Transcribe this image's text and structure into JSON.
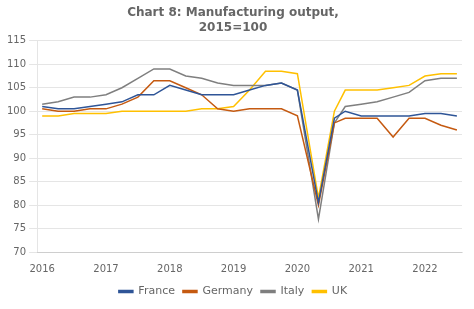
{
  "chart_data": {
    "type": "line",
    "title": "Chart 8: Manufacturing output,\n2015=100",
    "x": [
      2016.0,
      2016.25,
      2016.5,
      2016.75,
      2017.0,
      2017.25,
      2017.5,
      2017.75,
      2018.0,
      2018.25,
      2018.5,
      2018.75,
      2019.0,
      2019.25,
      2019.5,
      2019.75,
      2020.0,
      2020.33,
      2020.58,
      2020.75,
      2021.0,
      2021.25,
      2021.5,
      2021.75,
      2022.0,
      2022.25,
      2022.5
    ],
    "series": [
      {
        "name": "France",
        "color": "#2f5597",
        "values": [
          101.0,
          100.5,
          100.5,
          101.0,
          101.5,
          102.0,
          103.5,
          103.5,
          105.5,
          104.5,
          103.5,
          103.5,
          103.5,
          104.5,
          105.5,
          106.0,
          104.5,
          80.5,
          98.5,
          100.0,
          99.0,
          99.0,
          99.0,
          99.0,
          99.5,
          99.5,
          99.0
        ]
      },
      {
        "name": "Germany",
        "color": "#c55a11",
        "values": [
          100.5,
          100.0,
          100.0,
          100.5,
          100.5,
          101.5,
          103.0,
          106.5,
          106.5,
          105.0,
          103.5,
          100.5,
          100.0,
          100.5,
          100.5,
          100.5,
          99.0,
          80.0,
          97.5,
          98.5,
          98.5,
          98.5,
          94.5,
          98.5,
          98.5,
          97.0,
          96.0
        ]
      },
      {
        "name": "Italy",
        "color": "#7f7f7f",
        "values": [
          101.5,
          102.0,
          103.0,
          103.0,
          103.5,
          105.0,
          107.0,
          109.0,
          109.0,
          107.5,
          107.0,
          106.0,
          105.5,
          105.5,
          105.5,
          106.0,
          104.5,
          77.0,
          97.5,
          101.0,
          101.5,
          102.0,
          103.0,
          104.0,
          106.5,
          107.0,
          107.0
        ]
      },
      {
        "name": "UK",
        "color": "#ffc000",
        "values": [
          99.0,
          99.0,
          99.5,
          99.5,
          99.5,
          100.0,
          100.0,
          100.0,
          100.0,
          100.0,
          100.5,
          100.5,
          101.0,
          104.5,
          108.5,
          108.5,
          108.0,
          81.5,
          100.0,
          104.5,
          104.5,
          104.5,
          105.0,
          105.5,
          107.5,
          108.0,
          108.0
        ]
      }
    ],
    "xlim": [
      2015.92,
      2022.58
    ],
    "xticks": [
      2016,
      2017,
      2018,
      2019,
      2020,
      2021,
      2022
    ],
    "ylim": [
      70,
      115
    ],
    "yticks": [
      70,
      75,
      80,
      85,
      90,
      95,
      100,
      105,
      110,
      115
    ],
    "grid": "y",
    "legend": "bottom"
  }
}
